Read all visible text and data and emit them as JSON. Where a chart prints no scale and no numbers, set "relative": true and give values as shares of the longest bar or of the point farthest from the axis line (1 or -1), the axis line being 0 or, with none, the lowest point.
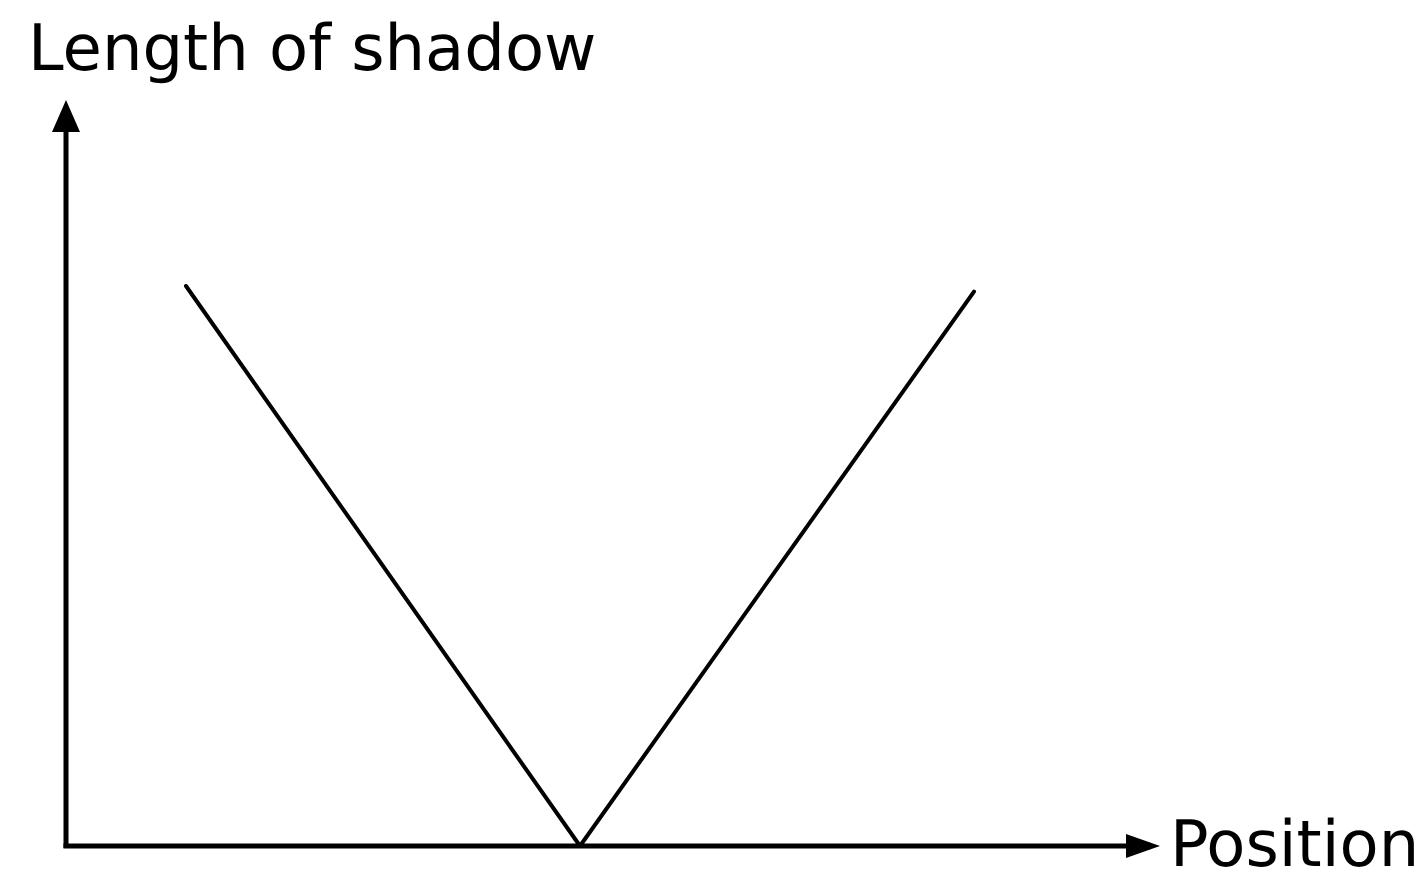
{
  "chart_data": {
    "type": "line",
    "ylabel": "Length of shadow",
    "xlabel": "Position",
    "categories": [
      null,
      null,
      null
    ],
    "values": [
      1,
      0,
      0.99
    ],
    "color": "#000000",
    "relative": true
  }
}
